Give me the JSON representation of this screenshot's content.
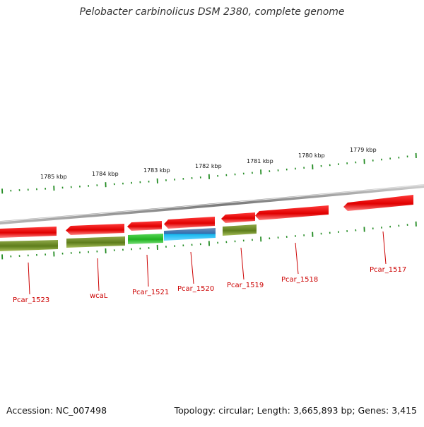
{
  "title": "Pelobacter carbinolicus DSM 2380, complete genome",
  "footer": {
    "accession": "Accession: NC_007498",
    "summary": "Topology: circular; Length: 3,665,893 bp; Genes: 3,415"
  },
  "scale_labels": [
    "1785 kbp",
    "1784 kbp",
    "1783 kbp",
    "1782 kbp",
    "1781 kbp",
    "1780 kbp",
    "1779 kbp"
  ],
  "gene_labels": [
    "Pcar_1523",
    "wcaL",
    "Pcar_1521",
    "Pcar_1520",
    "Pcar_1519",
    "Pcar_1518",
    "Pcar_1517"
  ],
  "colors": {
    "backbone": "#8a8a8a",
    "gene_red": "#ee1111",
    "cds_olive": "#6b8e23",
    "cds_green": "#33cc33",
    "rna_blue": "#3399ff",
    "tick_green": "#228b22",
    "label_red": "#cc0000"
  }
}
